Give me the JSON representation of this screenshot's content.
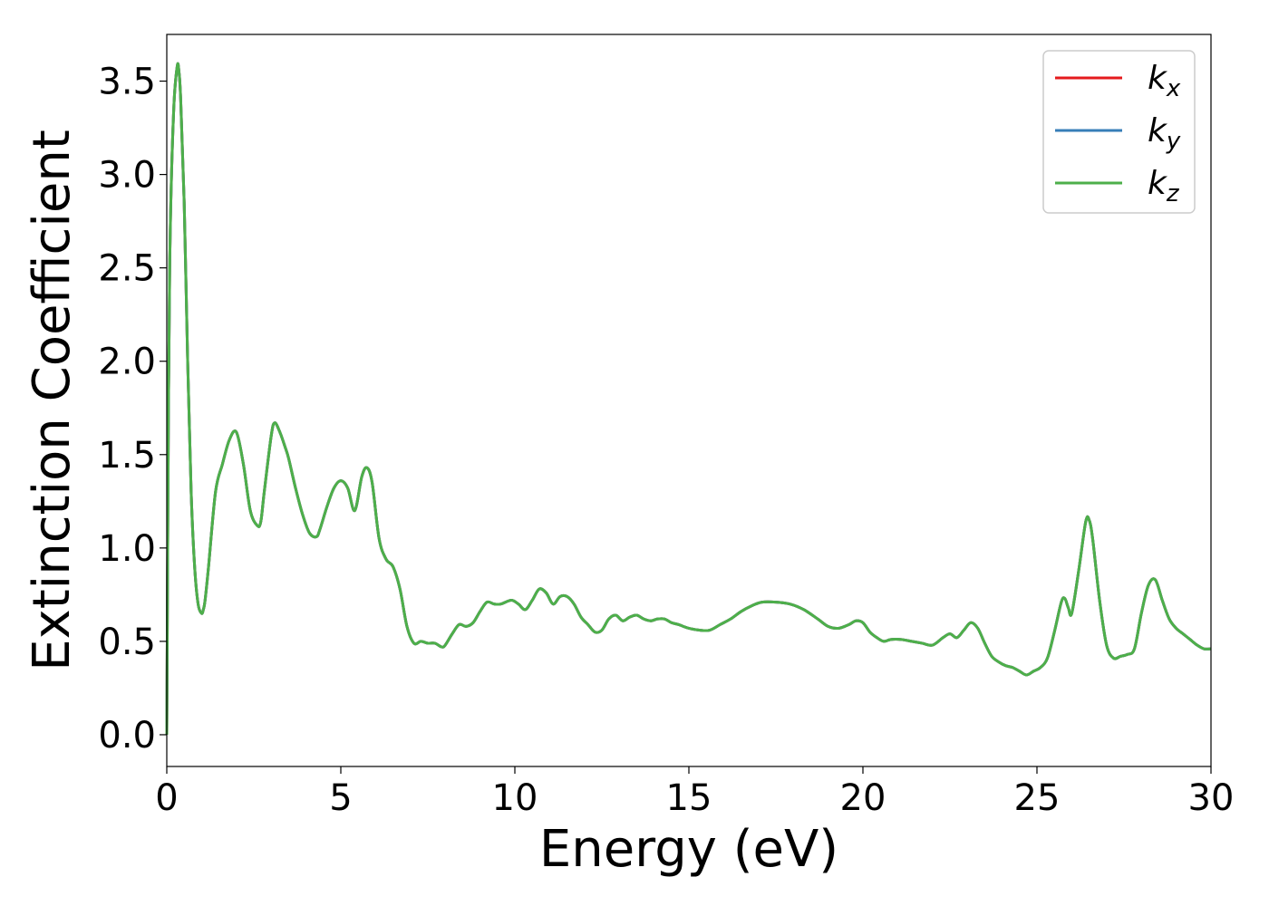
{
  "chart_data": {
    "type": "line",
    "xlabel": "Energy (eV)",
    "ylabel": "Extinction Coefficient",
    "xlim": [
      0,
      30
    ],
    "ylim": [
      -0.17,
      3.75
    ],
    "x_ticks": [
      "0",
      "5",
      "10",
      "15",
      "20",
      "25",
      "30"
    ],
    "y_ticks": [
      "0.0",
      "0.5",
      "1.0",
      "1.5",
      "2.0",
      "2.5",
      "3.0",
      "3.5"
    ],
    "grid": false,
    "legend_position": "top-right",
    "series": [
      {
        "name": "k",
        "subscript": "x",
        "color": "#e41a1c"
      },
      {
        "name": "k",
        "subscript": "y",
        "color": "#377eb8"
      },
      {
        "name": "k",
        "subscript": "z",
        "color": "#4daf4a"
      }
    ],
    "x": [
      0.0,
      0.05,
      0.1,
      0.2,
      0.3,
      0.35,
      0.4,
      0.5,
      0.6,
      0.7,
      0.8,
      0.9,
      1.0,
      1.05,
      1.1,
      1.2,
      1.4,
      1.6,
      1.8,
      2.0,
      2.2,
      2.4,
      2.6,
      2.7,
      2.8,
      3.0,
      3.1,
      3.25,
      3.4,
      3.5,
      3.7,
      3.9,
      4.1,
      4.3,
      4.4,
      4.6,
      4.8,
      5.0,
      5.2,
      5.4,
      5.6,
      5.75,
      5.9,
      6.1,
      6.3,
      6.5,
      6.7,
      6.9,
      7.1,
      7.3,
      7.5,
      7.7,
      7.9,
      8.0,
      8.2,
      8.4,
      8.6,
      8.8,
      9.0,
      9.2,
      9.4,
      9.6,
      9.9,
      10.1,
      10.3,
      10.5,
      10.7,
      10.9,
      11.1,
      11.3,
      11.5,
      11.7,
      11.9,
      12.1,
      12.3,
      12.5,
      12.7,
      12.9,
      13.1,
      13.3,
      13.5,
      13.7,
      13.9,
      14.1,
      14.3,
      14.5,
      14.7,
      15.0,
      15.3,
      15.6,
      15.9,
      16.2,
      16.5,
      16.8,
      17.1,
      17.5,
      17.9,
      18.3,
      18.7,
      19.0,
      19.3,
      19.6,
      19.8,
      20.0,
      20.2,
      20.4,
      20.6,
      20.8,
      21.1,
      21.4,
      21.7,
      22.0,
      22.3,
      22.5,
      22.7,
      22.9,
      23.1,
      23.3,
      23.5,
      23.7,
      23.9,
      24.1,
      24.3,
      24.5,
      24.7,
      24.9,
      25.1,
      25.3,
      25.5,
      25.7,
      25.8,
      25.9,
      26.0,
      26.2,
      26.4,
      26.5,
      26.6,
      26.8,
      27.0,
      27.2,
      27.4,
      27.6,
      27.8,
      28.0,
      28.2,
      28.4,
      28.6,
      28.8,
      29.0,
      29.2,
      29.4,
      29.6,
      29.8,
      30.0
    ],
    "y": [
      0.0,
      1.8,
      2.7,
      3.35,
      3.58,
      3.55,
      3.4,
      2.85,
      2.0,
      1.3,
      0.9,
      0.7,
      0.65,
      0.67,
      0.72,
      0.9,
      1.3,
      1.45,
      1.58,
      1.62,
      1.45,
      1.2,
      1.12,
      1.14,
      1.3,
      1.6,
      1.67,
      1.62,
      1.54,
      1.48,
      1.32,
      1.18,
      1.08,
      1.06,
      1.1,
      1.22,
      1.32,
      1.36,
      1.32,
      1.2,
      1.38,
      1.43,
      1.35,
      1.05,
      0.94,
      0.9,
      0.78,
      0.58,
      0.49,
      0.5,
      0.49,
      0.49,
      0.47,
      0.48,
      0.54,
      0.59,
      0.58,
      0.6,
      0.66,
      0.71,
      0.7,
      0.7,
      0.72,
      0.7,
      0.67,
      0.72,
      0.78,
      0.76,
      0.7,
      0.74,
      0.74,
      0.7,
      0.63,
      0.59,
      0.55,
      0.56,
      0.62,
      0.64,
      0.61,
      0.63,
      0.64,
      0.62,
      0.61,
      0.62,
      0.62,
      0.6,
      0.59,
      0.57,
      0.56,
      0.56,
      0.59,
      0.62,
      0.66,
      0.69,
      0.71,
      0.71,
      0.7,
      0.67,
      0.62,
      0.58,
      0.57,
      0.59,
      0.61,
      0.6,
      0.55,
      0.52,
      0.5,
      0.51,
      0.51,
      0.5,
      0.49,
      0.48,
      0.52,
      0.54,
      0.52,
      0.56,
      0.6,
      0.57,
      0.49,
      0.42,
      0.39,
      0.37,
      0.36,
      0.34,
      0.32,
      0.34,
      0.36,
      0.41,
      0.55,
      0.71,
      0.73,
      0.68,
      0.65,
      0.88,
      1.14,
      1.15,
      1.05,
      0.72,
      0.48,
      0.41,
      0.42,
      0.43,
      0.46,
      0.65,
      0.8,
      0.83,
      0.72,
      0.62,
      0.57,
      0.54,
      0.51,
      0.48,
      0.46,
      0.46
    ]
  }
}
